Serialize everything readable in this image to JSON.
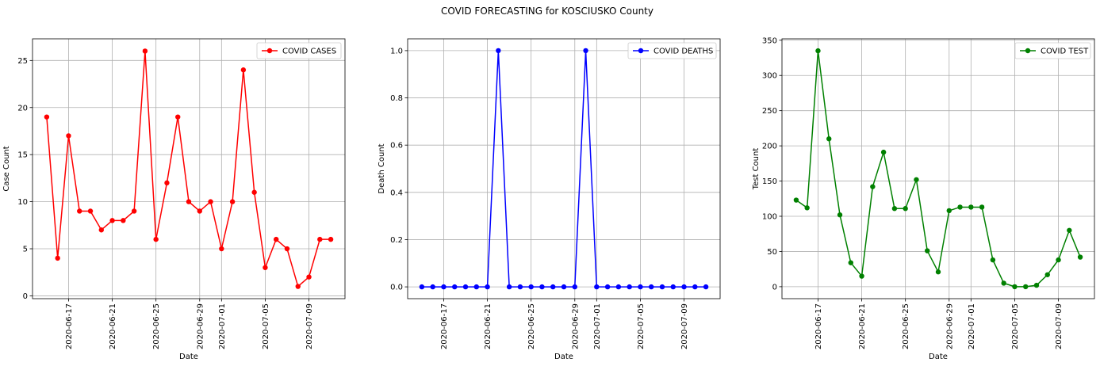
{
  "figure": {
    "title": "COVID FORECASTING for KOSCIUSKO County"
  },
  "colors": {
    "cases": "#ff0000",
    "deaths": "#0000ff",
    "tests": "#008000",
    "grid": "#b0b0b0"
  },
  "chart_data": [
    {
      "type": "line",
      "xlabel": "Date",
      "ylabel": "Case Count",
      "ylim": [
        -0.3,
        27.3
      ],
      "yticks": [
        0,
        5,
        10,
        15,
        20,
        25
      ],
      "xticks": [
        "2020-06-17",
        "2020-06-21",
        "2020-06-25",
        "2020-06-29",
        "2020-07-01",
        "2020-07-05",
        "2020-07-09"
      ],
      "grid": true,
      "legend": "upper right",
      "x": [
        "2020-06-15",
        "2020-06-16",
        "2020-06-17",
        "2020-06-18",
        "2020-06-19",
        "2020-06-20",
        "2020-06-21",
        "2020-06-22",
        "2020-06-23",
        "2020-06-24",
        "2020-06-25",
        "2020-06-26",
        "2020-06-27",
        "2020-06-28",
        "2020-06-29",
        "2020-06-30",
        "2020-07-01",
        "2020-07-02",
        "2020-07-03",
        "2020-07-04",
        "2020-07-05",
        "2020-07-06",
        "2020-07-07",
        "2020-07-08",
        "2020-07-09",
        "2020-07-10",
        "2020-07-11"
      ],
      "series": [
        {
          "name": "COVID CASES",
          "color": "#ff0000",
          "values": [
            19,
            4,
            17,
            9,
            9,
            7,
            8,
            8,
            9,
            26,
            6,
            12,
            19,
            10,
            9,
            10,
            5,
            10,
            24,
            11,
            3,
            6,
            5,
            1,
            2,
            6,
            6
          ]
        }
      ]
    },
    {
      "type": "line",
      "xlabel": "Date",
      "ylabel": "Death Count",
      "ylim": [
        -0.05,
        1.05
      ],
      "yticks": [
        0.0,
        0.2,
        0.4,
        0.6,
        0.8,
        1.0
      ],
      "xticks": [
        "2020-06-17",
        "2020-06-21",
        "2020-06-25",
        "2020-06-29",
        "2020-07-01",
        "2020-07-05",
        "2020-07-09"
      ],
      "grid": true,
      "legend": "upper right",
      "x": [
        "2020-06-15",
        "2020-06-16",
        "2020-06-17",
        "2020-06-18",
        "2020-06-19",
        "2020-06-20",
        "2020-06-21",
        "2020-06-22",
        "2020-06-23",
        "2020-06-24",
        "2020-06-25",
        "2020-06-26",
        "2020-06-27",
        "2020-06-28",
        "2020-06-29",
        "2020-06-30",
        "2020-07-01",
        "2020-07-02",
        "2020-07-03",
        "2020-07-04",
        "2020-07-05",
        "2020-07-06",
        "2020-07-07",
        "2020-07-08",
        "2020-07-09",
        "2020-07-10",
        "2020-07-11"
      ],
      "series": [
        {
          "name": "COVID DEATHS",
          "color": "#0000ff",
          "values": [
            0,
            0,
            0,
            0,
            0,
            0,
            0,
            1,
            0,
            0,
            0,
            0,
            0,
            0,
            0,
            1,
            0,
            0,
            0,
            0,
            0,
            0,
            0,
            0,
            0,
            0,
            0
          ]
        }
      ]
    },
    {
      "type": "line",
      "xlabel": "Date",
      "ylabel": "Test Count",
      "ylim": [
        -17,
        352
      ],
      "yticks": [
        0,
        50,
        100,
        150,
        200,
        250,
        300,
        350
      ],
      "xticks": [
        "2020-06-17",
        "2020-06-21",
        "2020-06-25",
        "2020-06-29",
        "2020-07-01",
        "2020-07-05",
        "2020-07-09"
      ],
      "grid": true,
      "legend": "upper right",
      "x": [
        "2020-06-15",
        "2020-06-16",
        "2020-06-17",
        "2020-06-18",
        "2020-06-19",
        "2020-06-20",
        "2020-06-21",
        "2020-06-22",
        "2020-06-23",
        "2020-06-24",
        "2020-06-25",
        "2020-06-26",
        "2020-06-27",
        "2020-06-28",
        "2020-06-29",
        "2020-06-30",
        "2020-07-01",
        "2020-07-02",
        "2020-07-03",
        "2020-07-04",
        "2020-07-05",
        "2020-07-06",
        "2020-07-07",
        "2020-07-08",
        "2020-07-09",
        "2020-07-10",
        "2020-07-11"
      ],
      "series": [
        {
          "name": "COVID TEST",
          "color": "#008000",
          "values": [
            123,
            112,
            335,
            210,
            102,
            34,
            15,
            142,
            191,
            111,
            111,
            152,
            51,
            21,
            108,
            113,
            113,
            113,
            38,
            5,
            0,
            0,
            2,
            17,
            38,
            80,
            42
          ]
        }
      ]
    }
  ]
}
